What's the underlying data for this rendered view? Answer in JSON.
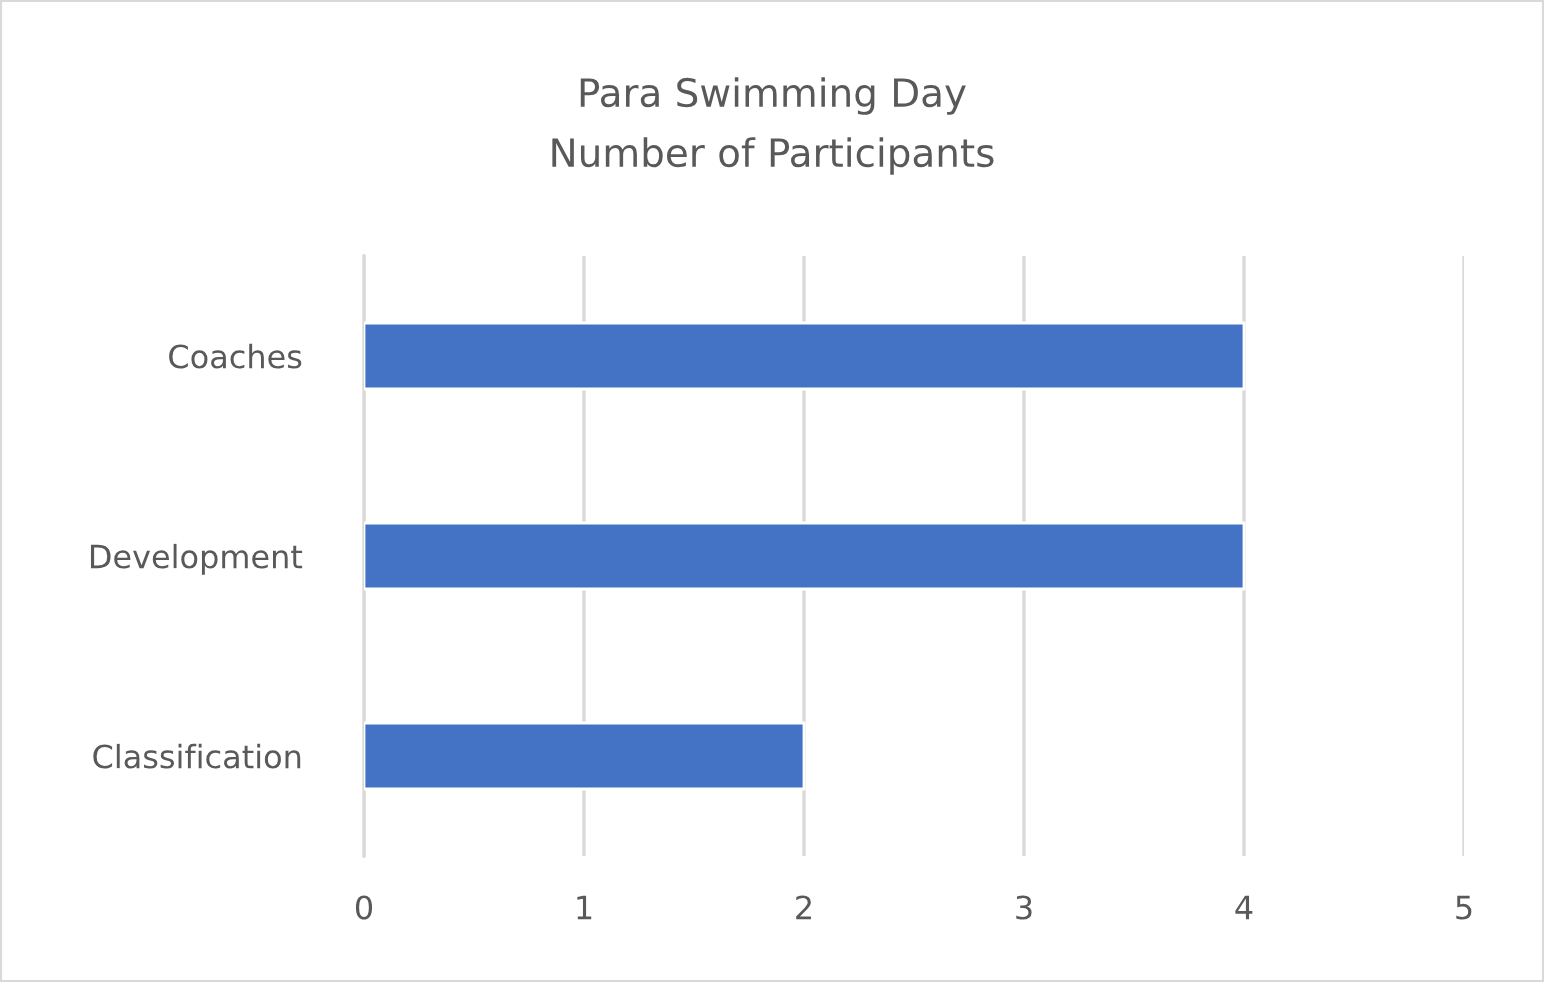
{
  "chart_data": {
    "type": "bar",
    "orientation": "horizontal",
    "title": "Para Swimming Day",
    "subtitle": "Number of Participants",
    "categories": [
      "Coaches",
      "Development",
      "Classification"
    ],
    "values": [
      4,
      4,
      2
    ],
    "color": "#4472c4",
    "xlim": [
      0,
      5
    ],
    "xticks": [
      0,
      1,
      2,
      3,
      4,
      5
    ],
    "grid": "x",
    "legend": false
  }
}
